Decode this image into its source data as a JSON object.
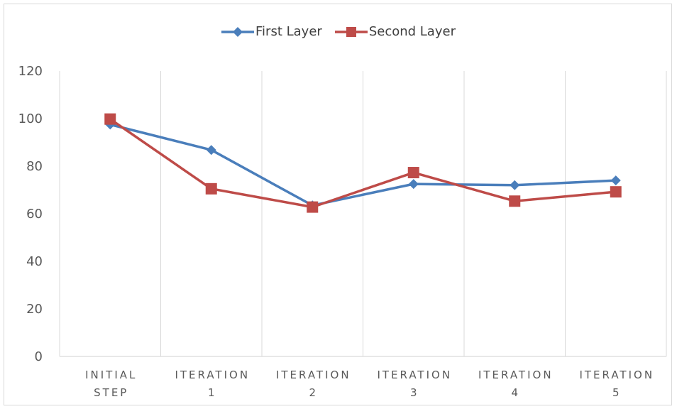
{
  "chart_data": {
    "type": "line",
    "categories": [
      [
        "INITIAL",
        "STEP"
      ],
      [
        "ITERATION",
        "1"
      ],
      [
        "ITERATION",
        "2"
      ],
      [
        "ITERATION",
        "3"
      ],
      [
        "ITERATION",
        "4"
      ],
      [
        "ITERATION",
        "5"
      ]
    ],
    "series": [
      {
        "name": "First Layer",
        "color": "#4a7ebb",
        "marker": "diamond",
        "values": [
          97.5,
          86.8,
          63.5,
          72.5,
          72.0,
          74.0
        ]
      },
      {
        "name": "Second Layer",
        "color": "#be4b48",
        "marker": "square",
        "values": [
          99.8,
          70.5,
          62.8,
          77.3,
          65.3,
          69.2
        ]
      }
    ],
    "yticks": [
      "0",
      "20",
      "40",
      "60",
      "80",
      "100",
      "120"
    ],
    "ylim": [
      0,
      120
    ],
    "grid": "vertical category separators",
    "legend": "top-center"
  }
}
